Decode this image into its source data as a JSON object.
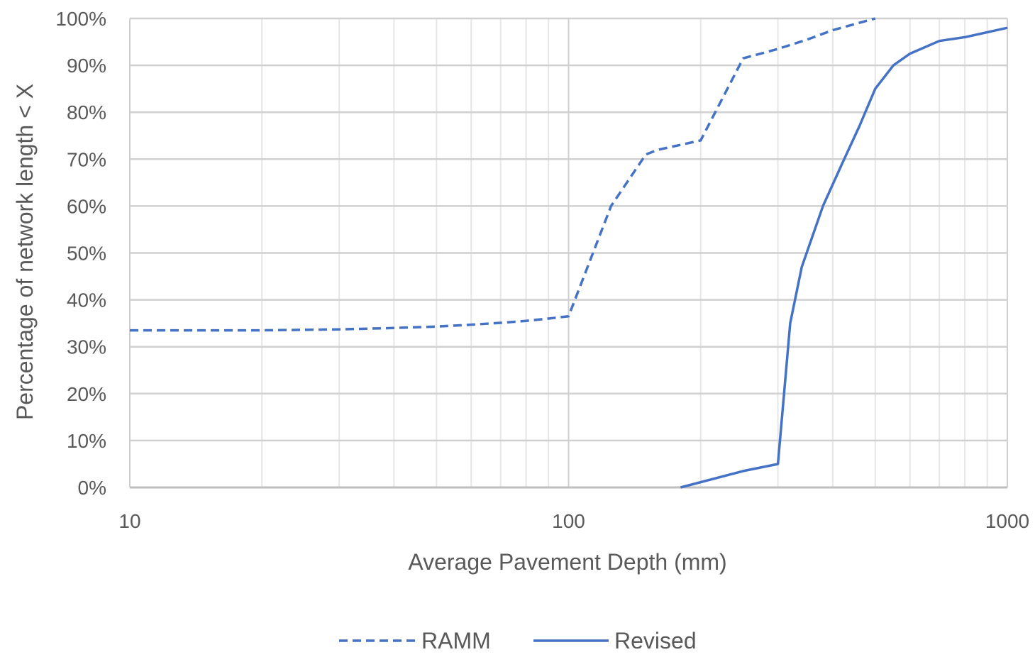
{
  "chart_data": {
    "type": "line",
    "x_scale": "log",
    "xlabel": "Average Pavement Depth (mm)",
    "ylabel": "Percentage of network length < X",
    "xlim": [
      10,
      1000
    ],
    "ylim": [
      0,
      100
    ],
    "x_ticks": [
      "10",
      "100",
      "1000"
    ],
    "y_ticks": [
      "0%",
      "10%",
      "20%",
      "30%",
      "40%",
      "50%",
      "60%",
      "70%",
      "80%",
      "90%",
      "100%"
    ],
    "y_tick_values": [
      0,
      10,
      20,
      30,
      40,
      50,
      60,
      70,
      80,
      90,
      100
    ],
    "x_tick_values": [
      10,
      100,
      1000
    ],
    "grid": true,
    "legend_position": "bottom",
    "series": [
      {
        "name": "RAMM",
        "style": "dashed",
        "color": "#4472C4",
        "x": [
          10,
          20,
          30,
          40,
          50,
          60,
          70,
          80,
          90,
          100,
          125,
          150,
          160,
          200,
          250,
          300,
          350,
          400,
          500
        ],
        "y": [
          33.5,
          33.5,
          33.7,
          34,
          34.3,
          34.7,
          35.1,
          35.5,
          36,
          36.5,
          60,
          71,
          72,
          74,
          91.5,
          93.5,
          95.5,
          97.5,
          100
        ]
      },
      {
        "name": "Revised",
        "style": "solid",
        "color": "#4472C4",
        "x": [
          180,
          250,
          300,
          320,
          340,
          380,
          420,
          460,
          500,
          550,
          600,
          700,
          800,
          1000
        ],
        "y": [
          0,
          3.5,
          5,
          35,
          47,
          60,
          69,
          77,
          85,
          90,
          92.5,
          95.2,
          96,
          98
        ]
      }
    ]
  }
}
